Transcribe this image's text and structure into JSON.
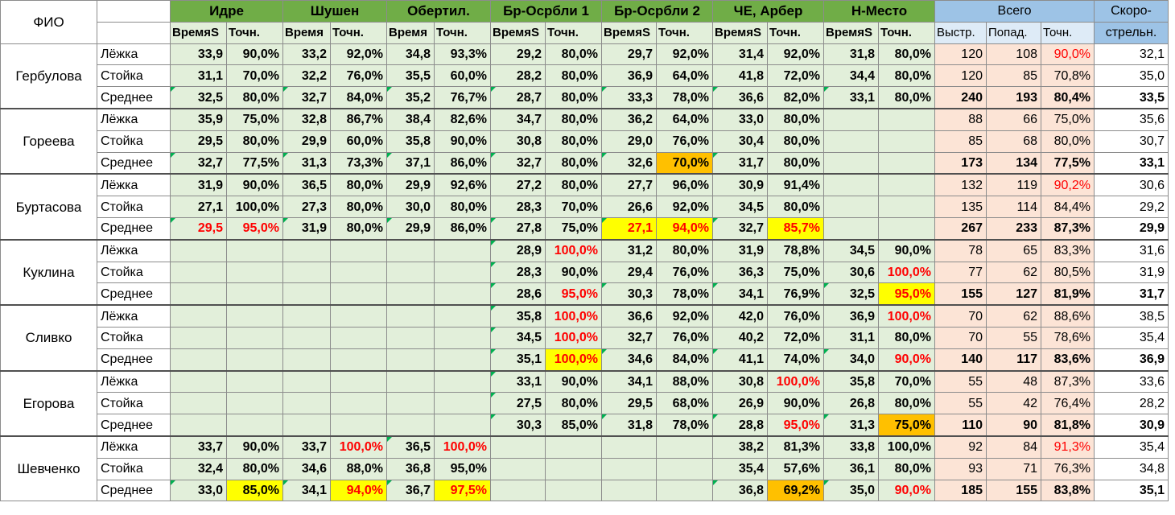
{
  "header": {
    "fio_label": "ФИО",
    "events": [
      "Идре",
      "Шушен",
      "Обертил.",
      "Бр-Осрбли 1",
      "Бр-Осрбли 2",
      "ЧЕ, Арбер",
      "Н-Место"
    ],
    "event_sub_time": "ВремяS",
    "event_sub_time_short": "Время",
    "event_sub_acc": "Точн.",
    "total_label": "Всего",
    "total_subs": [
      "Выстр.",
      "Попад.",
      "Точн."
    ],
    "speed_label_1": "Скоро-",
    "speed_label_2": "стрельн."
  },
  "row_labels": [
    "Лёжка",
    "Стойка",
    "Среднее"
  ],
  "athletes": [
    {
      "name": "Гербулова",
      "rows": [
        [
          [
            "33,9",
            "90,0%"
          ],
          [
            "33,2",
            "92,0%"
          ],
          [
            "34,8",
            "93,3%"
          ],
          [
            "29,2",
            "80,0%"
          ],
          [
            "29,7",
            "92,0%"
          ],
          [
            "31,4",
            "92,0%"
          ],
          [
            "31,8",
            "80,0%"
          ],
          [
            "120",
            "108",
            "90,0%"
          ],
          "32,1"
        ],
        [
          [
            "31,1",
            "70,0%"
          ],
          [
            "32,2",
            "76,0%"
          ],
          [
            "35,5",
            "60,0%"
          ],
          [
            "28,2",
            "80,0%"
          ],
          [
            "36,9",
            "64,0%"
          ],
          [
            "41,8",
            "72,0%"
          ],
          [
            "34,4",
            "80,0%"
          ],
          [
            "120",
            "85",
            "70,8%"
          ],
          "35,0"
        ],
        [
          [
            "32,5",
            "80,0%"
          ],
          [
            "32,7",
            "84,0%"
          ],
          [
            "35,2",
            "76,7%"
          ],
          [
            "28,7",
            "80,0%"
          ],
          [
            "33,3",
            "78,0%"
          ],
          [
            "36,6",
            "82,0%"
          ],
          [
            "33,1",
            "80,0%"
          ],
          [
            "240",
            "193",
            "80,4%"
          ],
          "33,5"
        ]
      ]
    },
    {
      "name": "Гореева",
      "rows": [
        [
          [
            "35,9",
            "75,0%"
          ],
          [
            "32,8",
            "86,7%"
          ],
          [
            "38,4",
            "82,6%"
          ],
          [
            "34,7",
            "80,0%"
          ],
          [
            "36,2",
            "64,0%"
          ],
          [
            "33,0",
            "80,0%"
          ],
          [
            "",
            ""
          ],
          [
            "88",
            "66",
            "75,0%"
          ],
          "35,6"
        ],
        [
          [
            "29,5",
            "80,0%"
          ],
          [
            "29,9",
            "60,0%"
          ],
          [
            "35,8",
            "90,0%"
          ],
          [
            "30,8",
            "80,0%"
          ],
          [
            "29,0",
            "76,0%"
          ],
          [
            "30,4",
            "80,0%"
          ],
          [
            "",
            ""
          ],
          [
            "85",
            "68",
            "80,0%"
          ],
          "30,7"
        ],
        [
          [
            "32,7",
            "77,5%"
          ],
          [
            "31,3",
            "73,3%"
          ],
          [
            "37,1",
            "86,0%"
          ],
          [
            "32,7",
            "80,0%"
          ],
          [
            "32,6",
            "70,0%"
          ],
          [
            "31,7",
            "80,0%"
          ],
          [
            "",
            ""
          ],
          [
            "173",
            "134",
            "77,5%"
          ],
          "33,1"
        ]
      ]
    },
    {
      "name": "Буртасова",
      "rows": [
        [
          [
            "31,9",
            "90,0%"
          ],
          [
            "36,5",
            "80,0%"
          ],
          [
            "29,9",
            "92,6%"
          ],
          [
            "27,2",
            "80,0%"
          ],
          [
            "27,7",
            "96,0%"
          ],
          [
            "30,9",
            "91,4%"
          ],
          [
            "",
            ""
          ],
          [
            "132",
            "119",
            "90,2%"
          ],
          "30,6"
        ],
        [
          [
            "27,1",
            "100,0%"
          ],
          [
            "27,3",
            "80,0%"
          ],
          [
            "30,0",
            "80,0%"
          ],
          [
            "28,3",
            "70,0%"
          ],
          [
            "26,6",
            "92,0%"
          ],
          [
            "34,5",
            "80,0%"
          ],
          [
            "",
            ""
          ],
          [
            "135",
            "114",
            "84,4%"
          ],
          "29,2"
        ],
        [
          [
            "29,5",
            "95,0%"
          ],
          [
            "31,9",
            "80,0%"
          ],
          [
            "29,9",
            "86,0%"
          ],
          [
            "27,8",
            "75,0%"
          ],
          [
            "27,1",
            "94,0%"
          ],
          [
            "32,7",
            "85,7%"
          ],
          [
            "",
            ""
          ],
          [
            "267",
            "233",
            "87,3%"
          ],
          "29,9"
        ]
      ]
    },
    {
      "name": "Куклина",
      "rows": [
        [
          [
            "",
            ""
          ],
          [
            "",
            ""
          ],
          [
            "",
            ""
          ],
          [
            "28,9",
            "100,0%"
          ],
          [
            "31,2",
            "80,0%"
          ],
          [
            "31,9",
            "78,8%"
          ],
          [
            "34,5",
            "90,0%"
          ],
          [
            "78",
            "65",
            "83,3%"
          ],
          "31,6"
        ],
        [
          [
            "",
            ""
          ],
          [
            "",
            ""
          ],
          [
            "",
            ""
          ],
          [
            "28,3",
            "90,0%"
          ],
          [
            "29,4",
            "76,0%"
          ],
          [
            "36,3",
            "75,0%"
          ],
          [
            "30,6",
            "100,0%"
          ],
          [
            "77",
            "62",
            "80,5%"
          ],
          "31,9"
        ],
        [
          [
            "",
            ""
          ],
          [
            "",
            ""
          ],
          [
            "",
            ""
          ],
          [
            "28,6",
            "95,0%"
          ],
          [
            "30,3",
            "78,0%"
          ],
          [
            "34,1",
            "76,9%"
          ],
          [
            "32,5",
            "95,0%"
          ],
          [
            "155",
            "127",
            "81,9%"
          ],
          "31,7"
        ]
      ]
    },
    {
      "name": "Сливко",
      "rows": [
        [
          [
            "",
            ""
          ],
          [
            "",
            ""
          ],
          [
            "",
            ""
          ],
          [
            "35,8",
            "100,0%"
          ],
          [
            "36,6",
            "92,0%"
          ],
          [
            "42,0",
            "76,0%"
          ],
          [
            "36,9",
            "100,0%"
          ],
          [
            "70",
            "62",
            "88,6%"
          ],
          "38,5"
        ],
        [
          [
            "",
            ""
          ],
          [
            "",
            ""
          ],
          [
            "",
            ""
          ],
          [
            "34,5",
            "100,0%"
          ],
          [
            "32,7",
            "76,0%"
          ],
          [
            "40,2",
            "72,0%"
          ],
          [
            "31,1",
            "80,0%"
          ],
          [
            "70",
            "55",
            "78,6%"
          ],
          "35,4"
        ],
        [
          [
            "",
            ""
          ],
          [
            "",
            ""
          ],
          [
            "",
            ""
          ],
          [
            "35,1",
            "100,0%"
          ],
          [
            "34,6",
            "84,0%"
          ],
          [
            "41,1",
            "74,0%"
          ],
          [
            "34,0",
            "90,0%"
          ],
          [
            "140",
            "117",
            "83,6%"
          ],
          "36,9"
        ]
      ]
    },
    {
      "name": "Егорова",
      "rows": [
        [
          [
            "",
            ""
          ],
          [
            "",
            ""
          ],
          [
            "",
            ""
          ],
          [
            "33,1",
            "90,0%"
          ],
          [
            "34,1",
            "88,0%"
          ],
          [
            "30,8",
            "100,0%"
          ],
          [
            "35,8",
            "70,0%"
          ],
          [
            "55",
            "48",
            "87,3%"
          ],
          "33,6"
        ],
        [
          [
            "",
            ""
          ],
          [
            "",
            ""
          ],
          [
            "",
            ""
          ],
          [
            "27,5",
            "80,0%"
          ],
          [
            "29,5",
            "68,0%"
          ],
          [
            "26,9",
            "90,0%"
          ],
          [
            "26,8",
            "80,0%"
          ],
          [
            "55",
            "42",
            "76,4%"
          ],
          "28,2"
        ],
        [
          [
            "",
            ""
          ],
          [
            "",
            ""
          ],
          [
            "",
            ""
          ],
          [
            "30,3",
            "85,0%"
          ],
          [
            "31,8",
            "78,0%"
          ],
          [
            "28,8",
            "95,0%"
          ],
          [
            "31,3",
            "75,0%"
          ],
          [
            "110",
            "90",
            "81,8%"
          ],
          "30,9"
        ]
      ]
    },
    {
      "name": "Шевченко",
      "rows": [
        [
          [
            "33,7",
            "90,0%"
          ],
          [
            "33,7",
            "100,0%"
          ],
          [
            "36,5",
            "100,0%"
          ],
          [
            "",
            ""
          ],
          [
            "",
            ""
          ],
          [
            "38,2",
            "81,3%"
          ],
          [
            "33,8",
            "100,0%"
          ],
          [
            "92",
            "84",
            "91,3%"
          ],
          "35,4"
        ],
        [
          [
            "32,4",
            "80,0%"
          ],
          [
            "34,6",
            "88,0%"
          ],
          [
            "36,8",
            "95,0%"
          ],
          [
            "",
            ""
          ],
          [
            "",
            ""
          ],
          [
            "35,4",
            "57,6%"
          ],
          [
            "36,1",
            "80,0%"
          ],
          [
            "93",
            "71",
            "76,3%"
          ],
          "34,8"
        ],
        [
          [
            "33,0",
            "85,0%"
          ],
          [
            "34,1",
            "94,0%"
          ],
          [
            "36,7",
            "97,5%"
          ],
          [
            "",
            ""
          ],
          [
            "",
            ""
          ],
          [
            "36,8",
            "69,2%"
          ],
          [
            "35,0",
            "90,0%"
          ],
          [
            "185",
            "155",
            "83,8%"
          ],
          "35,1"
        ]
      ]
    }
  ],
  "colors": {
    "header_green": "#70ad47",
    "cell_green": "#e2efda",
    "header_blue": "#9dc3e6",
    "total_peach": "#fce4d6",
    "highlight_yellow": "#ffff00",
    "highlight_orange": "#ffc000",
    "red_text": "#ff0000"
  }
}
